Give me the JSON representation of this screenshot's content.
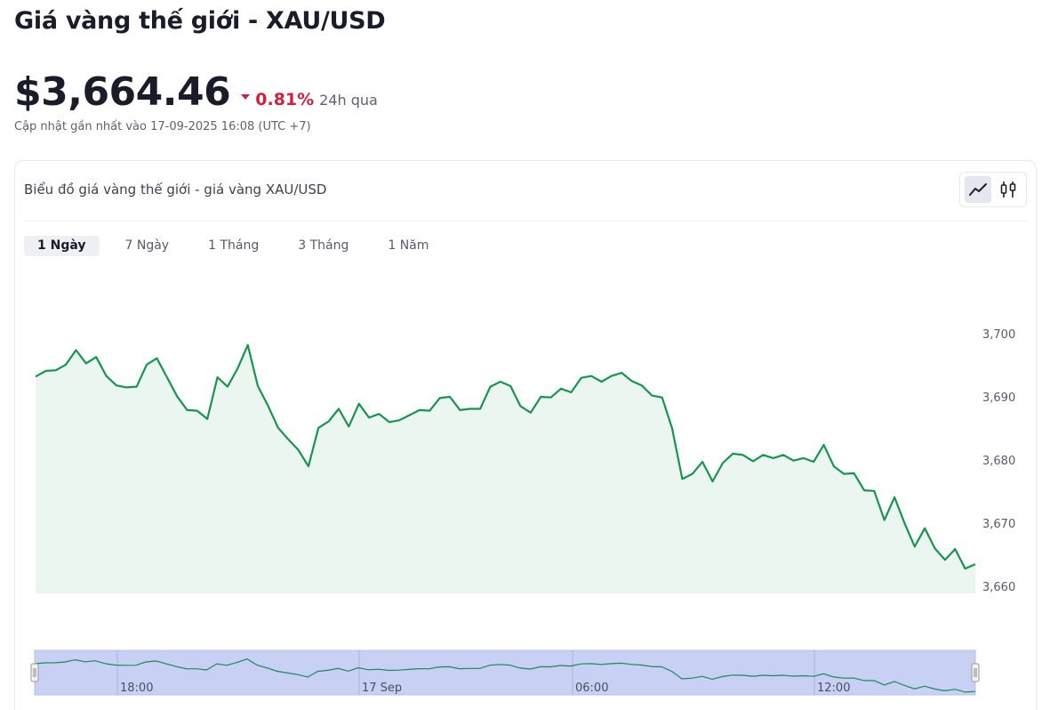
{
  "page": {
    "title": "Giá vàng thế giới - XAU/USD",
    "price": "$3,664.46",
    "change": "0.81%",
    "change_direction": "down",
    "period": "24h qua",
    "updated": "Cập nhật gần nhất vào 17-09-2025 16:08 (UTC +7)"
  },
  "card": {
    "title": "Biểu đồ giá vàng thế giới - giá vàng XAU/USD",
    "chart_types": [
      {
        "name": "line-chart-icon",
        "active": true
      },
      {
        "name": "candlestick-icon",
        "active": false
      }
    ]
  },
  "tabs": [
    {
      "label": "1 Ngày",
      "active": true
    },
    {
      "label": "7 Ngày",
      "active": false
    },
    {
      "label": "1 Tháng",
      "active": false
    },
    {
      "label": "3 Tháng",
      "active": false
    },
    {
      "label": "1 Năm",
      "active": false
    }
  ],
  "colors": {
    "line": "#17944f",
    "area": "#ecf6f0",
    "negative": "#d0203f",
    "navigator_fill": "#c8d0f4",
    "navigator_line": "#1a8a5a"
  },
  "chart_data": {
    "type": "area",
    "title": "",
    "xlabel": "",
    "ylabel": "",
    "ylim": [
      3660,
      3705
    ],
    "yticks": [
      "3,660",
      "3,670",
      "3,680",
      "3,690",
      "3,700"
    ],
    "ytick_values": [
      3660,
      3670,
      3680,
      3690,
      3700
    ],
    "grid": false,
    "navigator_labels": [
      "18:00",
      "17 Sep",
      "06:00",
      "12:00"
    ],
    "series": [
      {
        "values": [
          3693.2,
          3694.1,
          3694.2,
          3695.1,
          3697.4,
          3695.3,
          3696.3,
          3693.3,
          3691.8,
          3691.5,
          3691.6,
          3695.1,
          3696.1,
          3693.1,
          3690.1,
          3687.9,
          3687.8,
          3686.5,
          3693.1,
          3691.6,
          3694.5,
          3698.2,
          3691.7,
          3688.6,
          3685.1,
          3683.3,
          3681.6,
          3679.0,
          3685.1,
          3686.1,
          3688.1,
          3685.3,
          3688.9,
          3686.7,
          3687.3,
          3686.0,
          3686.3,
          3687.1,
          3687.9,
          3687.8,
          3689.8,
          3690.0,
          3687.9,
          3688.1,
          3688.1,
          3691.6,
          3692.4,
          3691.7,
          3688.5,
          3687.5,
          3690.0,
          3689.9,
          3691.3,
          3690.7,
          3693.0,
          3693.3,
          3692.4,
          3693.3,
          3693.8,
          3692.5,
          3691.8,
          3690.2,
          3689.9,
          3685.0,
          3677.0,
          3677.8,
          3679.7,
          3676.6,
          3679.5,
          3681.0,
          3680.8,
          3679.8,
          3680.8,
          3680.3,
          3680.8,
          3679.9,
          3680.3,
          3679.7,
          3682.4,
          3679.0,
          3677.8,
          3677.9,
          3675.2,
          3675.1,
          3670.5,
          3674.1,
          3670.0,
          3666.3,
          3669.2,
          3666.0,
          3664.2,
          3665.9,
          3662.8,
          3663.5
        ]
      }
    ]
  }
}
